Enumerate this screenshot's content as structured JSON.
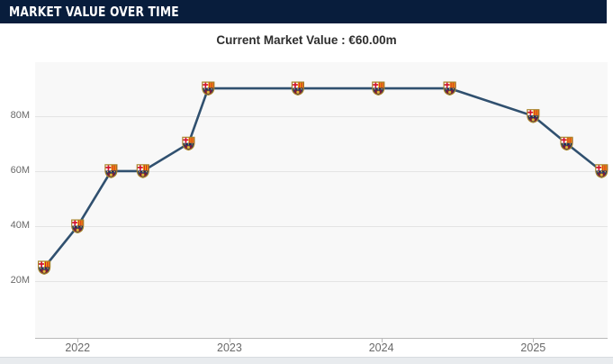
{
  "header": {
    "title": "MARKET VALUE OVER TIME",
    "bg_color": "#081d3c",
    "text_color": "#ffffff"
  },
  "current_value": {
    "text": "Current Market Value : €60.00m",
    "amount": "€60.00m"
  },
  "icons": {
    "marker": "fc-barcelona-crest-icon"
  },
  "chart_data": {
    "type": "line",
    "title": "Market value over time",
    "units": "€ million",
    "grid": true,
    "legend": "none",
    "marker": "fc-barcelona-crest",
    "xlim": [
      2021.72,
      2025.49
    ],
    "ylim": [
      0,
      100
    ],
    "x_tick_values": [
      2022,
      2023,
      2024,
      2025
    ],
    "x_tick_labels": [
      "2022",
      "2023",
      "2024",
      "2025"
    ],
    "y_tick_values": [
      20,
      40,
      60,
      80
    ],
    "y_tick_labels": [
      "20M",
      "40M",
      "60M",
      "80M"
    ],
    "series": [
      {
        "name": "market-value",
        "x": [
          2021.78,
          2022.0,
          2022.22,
          2022.43,
          2022.73,
          2022.86,
          2023.45,
          2023.98,
          2024.45,
          2025.0,
          2025.22,
          2025.45
        ],
        "values": [
          25,
          40,
          60,
          60,
          70,
          90,
          90,
          90,
          90,
          80,
          70,
          60
        ]
      }
    ],
    "colors": {
      "line": "#30506f",
      "panel_bg": "#f8f8f8",
      "gridline": "#e4e4e4",
      "axis": "#b9b9b9",
      "tick_label": "#6a6a6a"
    }
  }
}
